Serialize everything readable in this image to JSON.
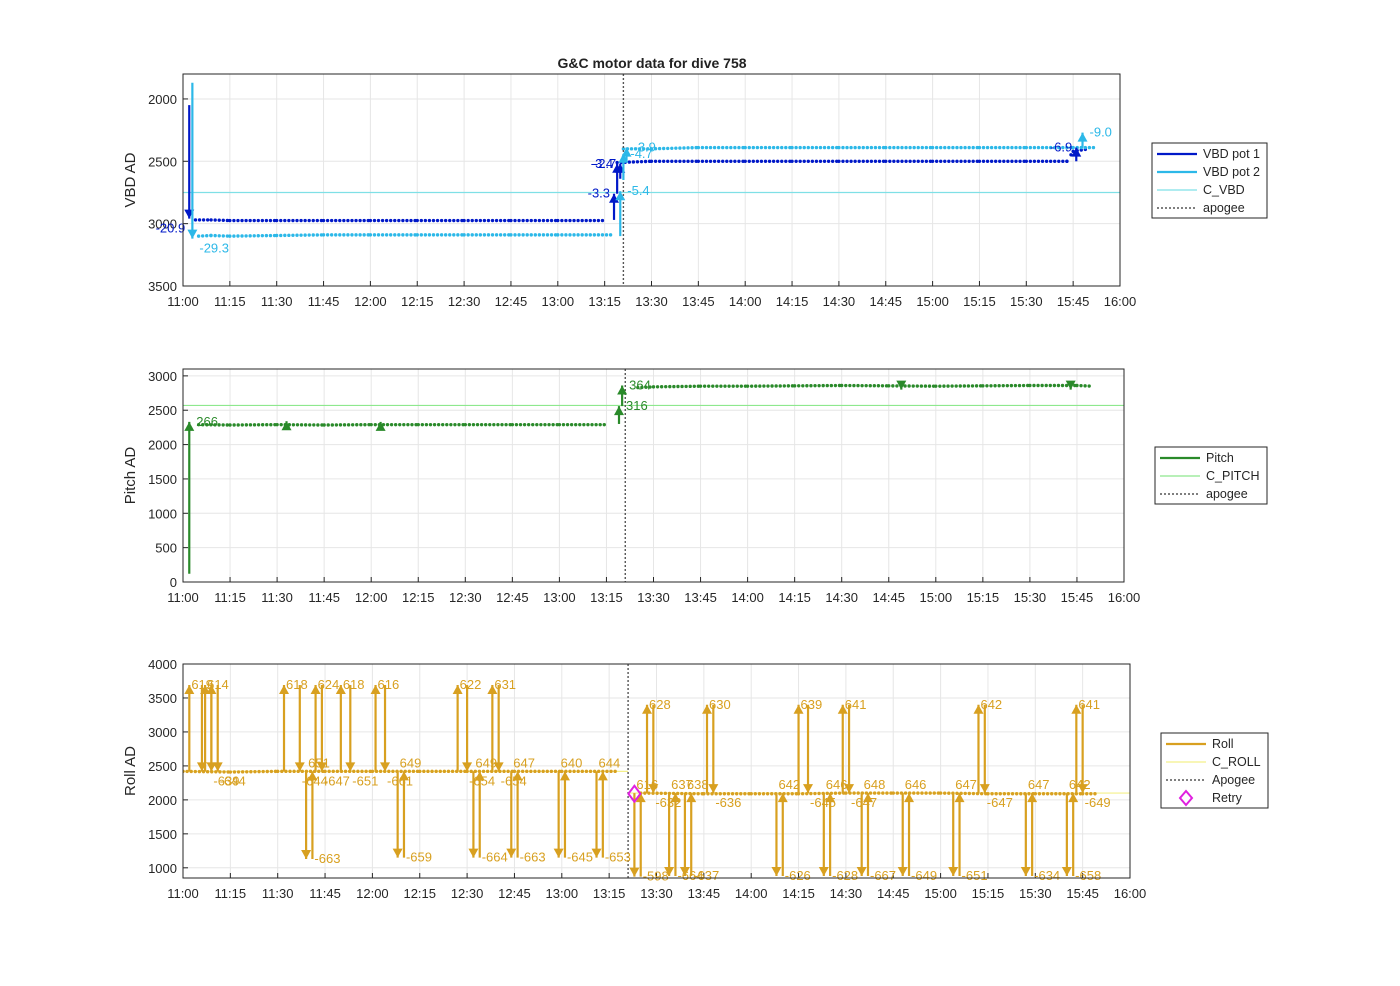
{
  "title": "G&C motor data for dive 758",
  "colors": {
    "vbd_pot1": "#0018c8",
    "vbd_pot2": "#2cb8e8",
    "c_vbd": "#7fe0e6",
    "pitch": "#2a8a2a",
    "c_pitch": "#8ee88e",
    "roll": "#d8a020",
    "c_roll": "#f4f08a",
    "apogee": "#555555",
    "retry": "#e020e0",
    "grid": "#e6e6e6",
    "axis": "#262626"
  },
  "x_ticks": [
    "11:00",
    "11:15",
    "11:30",
    "11:45",
    "12:00",
    "12:15",
    "12:30",
    "12:45",
    "13:00",
    "13:15",
    "13:30",
    "13:45",
    "14:00",
    "14:15",
    "14:30",
    "14:45",
    "15:00",
    "15:15",
    "15:30",
    "15:45",
    "16:00"
  ],
  "chart_data": [
    {
      "type": "line",
      "title": "G&C motor data for dive 758",
      "ylabel": "VBD AD",
      "xlim": [
        "11:00",
        "16:00"
      ],
      "ylim": [
        3500,
        1800
      ],
      "y_reversed": true,
      "yticks": [
        2000,
        2500,
        3000,
        3500
      ],
      "grid": true,
      "legend_position": "right",
      "apogee": "13:21",
      "reference_lines": [
        {
          "name": "C_VBD",
          "value": 2750,
          "color_key": "c_vbd"
        }
      ],
      "series": [
        {
          "name": "VBD pot 1",
          "color_key": "vbd_pot1",
          "points": [
            [
              "11:04",
              2970
            ],
            [
              "11:09",
              2970
            ],
            [
              "11:15",
              2975
            ],
            [
              "11:30",
              2975
            ],
            [
              "11:45",
              2975
            ],
            [
              "12:00",
              2975
            ],
            [
              "12:15",
              2975
            ],
            [
              "12:30",
              2975
            ],
            [
              "12:45",
              2975
            ],
            [
              "13:00",
              2975
            ],
            [
              "13:15",
              2975
            ],
            [
              "13:19",
              2510
            ],
            [
              "13:30",
              2500
            ],
            [
              "13:45",
              2500
            ],
            [
              "14:00",
              2500
            ],
            [
              "14:15",
              2500
            ],
            [
              "14:30",
              2500
            ],
            [
              "14:45",
              2500
            ],
            [
              "15:00",
              2500
            ],
            [
              "15:15",
              2500
            ],
            [
              "15:30",
              2500
            ],
            [
              "15:43",
              2500
            ],
            [
              "15:45",
              2420
            ],
            [
              "15:50",
              2400
            ]
          ]
        },
        {
          "name": "VBD pot 2",
          "color_key": "vbd_pot2",
          "points": [
            [
              "11:05",
              3100
            ],
            [
              "11:09",
              3095
            ],
            [
              "11:15",
              3100
            ],
            [
              "11:30",
              3095
            ],
            [
              "11:45",
              3090
            ],
            [
              "12:00",
              3090
            ],
            [
              "12:15",
              3090
            ],
            [
              "12:30",
              3090
            ],
            [
              "12:45",
              3090
            ],
            [
              "13:00",
              3090
            ],
            [
              "13:17",
              3090
            ],
            [
              "13:21",
              2400
            ],
            [
              "13:30",
              2400
            ],
            [
              "13:45",
              2390
            ],
            [
              "14:00",
              2390
            ],
            [
              "14:15",
              2390
            ],
            [
              "14:30",
              2390
            ],
            [
              "14:45",
              2390
            ],
            [
              "15:00",
              2390
            ],
            [
              "15:15",
              2390
            ],
            [
              "15:30",
              2390
            ],
            [
              "15:45",
              2390
            ],
            [
              "15:52",
              2390
            ]
          ]
        }
      ],
      "moves": [
        {
          "series": "VBD pot 1",
          "x": "11:02",
          "from": 2050,
          "to": 2960,
          "label": "-20.9"
        },
        {
          "series": "VBD pot 1",
          "x": "13:18",
          "from": 2970,
          "to": 2760,
          "label": "-3.3"
        },
        {
          "series": "VBD pot 1",
          "x": "13:19",
          "from": 2760,
          "to": 2520,
          "label": "-3.4"
        },
        {
          "series": "VBD pot 1",
          "x": "13:20",
          "from": 2640,
          "to": 2520,
          "label": "-2.7"
        },
        {
          "series": "VBD pot 1",
          "x": "15:46",
          "from": 2500,
          "to": 2390,
          "label": "-6.9"
        },
        {
          "series": "VBD pot 2",
          "x": "11:03",
          "from": 1870,
          "to": 3120,
          "label": "-29.3"
        },
        {
          "series": "VBD pot 2",
          "x": "13:20",
          "from": 3100,
          "to": 2740,
          "label": "-5.4"
        },
        {
          "series": "VBD pot 2",
          "x": "13:21",
          "from": 2650,
          "to": 2440,
          "label": "-4.7"
        },
        {
          "series": "VBD pot 2",
          "x": "13:22",
          "from": 2500,
          "to": 2390,
          "label": "-3.9"
        },
        {
          "series": "VBD pot 2",
          "x": "15:48",
          "from": 2390,
          "to": 2270,
          "label": "-9.0"
        }
      ],
      "legend": [
        "VBD pot 1",
        "VBD pot 2",
        "C_VBD",
        "apogee"
      ]
    },
    {
      "type": "line",
      "ylabel": "Pitch AD",
      "xlim": [
        "11:00",
        "16:00"
      ],
      "ylim": [
        0,
        3100
      ],
      "yticks": [
        0,
        500,
        1000,
        1500,
        2000,
        2500,
        3000
      ],
      "grid": true,
      "legend_position": "right",
      "apogee": "13:21",
      "reference_lines": [
        {
          "name": "C_PITCH",
          "value": 2570,
          "color_key": "c_pitch"
        }
      ],
      "series": [
        {
          "name": "Pitch",
          "color_key": "pitch",
          "points": [
            [
              "11:05",
              2290
            ],
            [
              "11:15",
              2285
            ],
            [
              "11:30",
              2290
            ],
            [
              "11:45",
              2285
            ],
            [
              "12:00",
              2290
            ],
            [
              "12:15",
              2290
            ],
            [
              "12:30",
              2290
            ],
            [
              "12:45",
              2290
            ],
            [
              "13:00",
              2290
            ],
            [
              "13:15",
              2290
            ],
            [
              "13:25",
              2830
            ],
            [
              "13:30",
              2840
            ],
            [
              "13:45",
              2850
            ],
            [
              "14:00",
              2850
            ],
            [
              "14:15",
              2855
            ],
            [
              "14:30",
              2860
            ],
            [
              "14:45",
              2855
            ],
            [
              "15:00",
              2850
            ],
            [
              "15:15",
              2855
            ],
            [
              "15:30",
              2860
            ],
            [
              "15:45",
              2860
            ],
            [
              "15:50",
              2850
            ]
          ]
        }
      ],
      "moves": [
        {
          "series": "Pitch",
          "x": "11:02",
          "from": 120,
          "to": 2330,
          "label": "266"
        },
        {
          "series": "Pitch",
          "x": "11:33",
          "from": 2270,
          "to": 2340,
          "label": ""
        },
        {
          "series": "Pitch",
          "x": "12:03",
          "from": 2260,
          "to": 2330,
          "label": ""
        },
        {
          "series": "Pitch",
          "x": "13:19",
          "from": 2300,
          "to": 2560,
          "label": "316"
        },
        {
          "series": "Pitch",
          "x": "13:20",
          "from": 2560,
          "to": 2860,
          "label": "364"
        },
        {
          "series": "Pitch",
          "x": "14:49",
          "from": 2880,
          "to": 2800,
          "label": ""
        },
        {
          "series": "Pitch",
          "x": "15:43",
          "from": 2880,
          "to": 2800,
          "label": ""
        }
      ],
      "legend": [
        "Pitch",
        "C_PITCH",
        "apogee"
      ]
    },
    {
      "type": "line",
      "ylabel": "Roll AD",
      "xlim": [
        "11:00",
        "16:00"
      ],
      "ylim": [
        850,
        4000
      ],
      "yticks": [
        1000,
        1500,
        2000,
        2500,
        3000,
        3500,
        4000
      ],
      "grid": true,
      "legend_position": "right",
      "apogee": "13:21",
      "reference_lines": [
        {
          "name": "C_ROLL",
          "value": 2420,
          "color_key": "c_roll",
          "x_to": "13:21"
        },
        {
          "name": "C_ROLL",
          "value": 2100,
          "color_key": "c_roll",
          "x_from": "13:21"
        }
      ],
      "series": [
        {
          "name": "Roll",
          "color_key": "roll",
          "points": [
            [
              "11:00",
              2420
            ],
            [
              "11:15",
              2410
            ],
            [
              "11:30",
              2420
            ],
            [
              "11:45",
              2420
            ],
            [
              "12:00",
              2420
            ],
            [
              "12:15",
              2420
            ],
            [
              "12:30",
              2420
            ],
            [
              "12:45",
              2420
            ],
            [
              "13:00",
              2420
            ],
            [
              "13:18",
              2420
            ],
            [
              "13:25",
              2100
            ],
            [
              "13:45",
              2090
            ],
            [
              "14:00",
              2090
            ],
            [
              "14:15",
              2090
            ],
            [
              "14:30",
              2100
            ],
            [
              "14:45",
              2100
            ],
            [
              "15:00",
              2100
            ],
            [
              "15:15",
              2090
            ],
            [
              "15:30",
              2090
            ],
            [
              "15:45",
              2090
            ],
            [
              "15:50",
              2090
            ]
          ]
        }
      ],
      "moves": [
        {
          "out": "11:02",
          "back": "11:06",
          "top": 3690,
          "out_label": "619",
          "back_label": ""
        },
        {
          "out": "11:07",
          "back": "11:09",
          "top": 3690,
          "out_label": "614",
          "back_label": "-639"
        },
        {
          "out": "11:09",
          "back": "11:11",
          "top": 3690,
          "out_label": "",
          "back_label": "-644"
        },
        {
          "out": "11:32",
          "back": "11:37",
          "top": 3690,
          "out_label": "618",
          "back_label": "-644"
        },
        {
          "out": "11:39",
          "back": "11:41",
          "top": 1130,
          "out_label": "651",
          "back_label": "-663"
        },
        {
          "out": "11:42",
          "back": "11:44",
          "top": 3690,
          "out_label": "624",
          "back_label": "-647"
        },
        {
          "out": "11:50",
          "back": "11:53",
          "top": 3690,
          "out_label": "618",
          "back_label": "-651"
        },
        {
          "out": "12:01",
          "back": "12:04",
          "top": 3690,
          "out_label": "616",
          "back_label": "-661"
        },
        {
          "out": "12:08",
          "back": "12:10",
          "top": 1150,
          "out_label": "649",
          "back_label": "-659"
        },
        {
          "out": "12:27",
          "back": "12:30",
          "top": 3690,
          "out_label": "622",
          "back_label": "-654"
        },
        {
          "out": "12:32",
          "back": "12:34",
          "top": 1150,
          "out_label": "649",
          "back_label": "-664"
        },
        {
          "out": "12:38",
          "back": "12:40",
          "top": 3690,
          "out_label": "631",
          "back_label": "-654"
        },
        {
          "out": "12:44",
          "back": "12:46",
          "top": 1150,
          "out_label": "647",
          "back_label": "-663"
        },
        {
          "out": "12:59",
          "back": "13:01",
          "top": 1150,
          "out_label": "640",
          "back_label": "-645"
        },
        {
          "out": "13:11",
          "back": "13:13",
          "top": 1150,
          "out_label": "644",
          "back_label": "-653"
        },
        {
          "out": "13:23",
          "back": "13:25",
          "top": 870,
          "out_label": "616",
          "back_label": "-598"
        },
        {
          "out": "13:27",
          "back": "13:29",
          "top": 3400,
          "out_label": "628",
          "back_label": "-632"
        },
        {
          "out": "13:34",
          "back": "13:36",
          "top": 880,
          "out_label": "637",
          "back_label": "-664"
        },
        {
          "out": "13:39",
          "back": "13:41",
          "top": 880,
          "out_label": "638",
          "back_label": "-637"
        },
        {
          "out": "13:46",
          "back": "13:48",
          "top": 3400,
          "out_label": "630",
          "back_label": "-636"
        },
        {
          "out": "14:08",
          "back": "14:10",
          "top": 880,
          "out_label": "642",
          "back_label": "-626"
        },
        {
          "out": "14:15",
          "back": "14:18",
          "top": 3400,
          "out_label": "639",
          "back_label": "-645"
        },
        {
          "out": "14:23",
          "back": "14:25",
          "top": 880,
          "out_label": "646",
          "back_label": "-628"
        },
        {
          "out": "14:29",
          "back": "14:31",
          "top": 3400,
          "out_label": "641",
          "back_label": "-647"
        },
        {
          "out": "14:35",
          "back": "14:37",
          "top": 880,
          "out_label": "648",
          "back_label": "-667"
        },
        {
          "out": "14:48",
          "back": "14:50",
          "top": 880,
          "out_label": "646",
          "back_label": "-649"
        },
        {
          "out": "15:04",
          "back": "15:06",
          "top": 880,
          "out_label": "647",
          "back_label": "-651"
        },
        {
          "out": "15:12",
          "back": "15:14",
          "top": 3400,
          "out_label": "642",
          "back_label": "-647"
        },
        {
          "out": "15:27",
          "back": "15:29",
          "top": 880,
          "out_label": "647",
          "back_label": "-634"
        },
        {
          "out": "15:40",
          "back": "15:42",
          "top": 880,
          "out_label": "642",
          "back_label": "-658"
        },
        {
          "out": "15:43",
          "back": "15:45",
          "top": 3400,
          "out_label": "641",
          "back_label": "-649"
        }
      ],
      "retry": [
        [
          "13:23",
          2090
        ]
      ],
      "legend": [
        "Roll",
        "C_ROLL",
        "Apogee",
        "Retry"
      ]
    }
  ]
}
